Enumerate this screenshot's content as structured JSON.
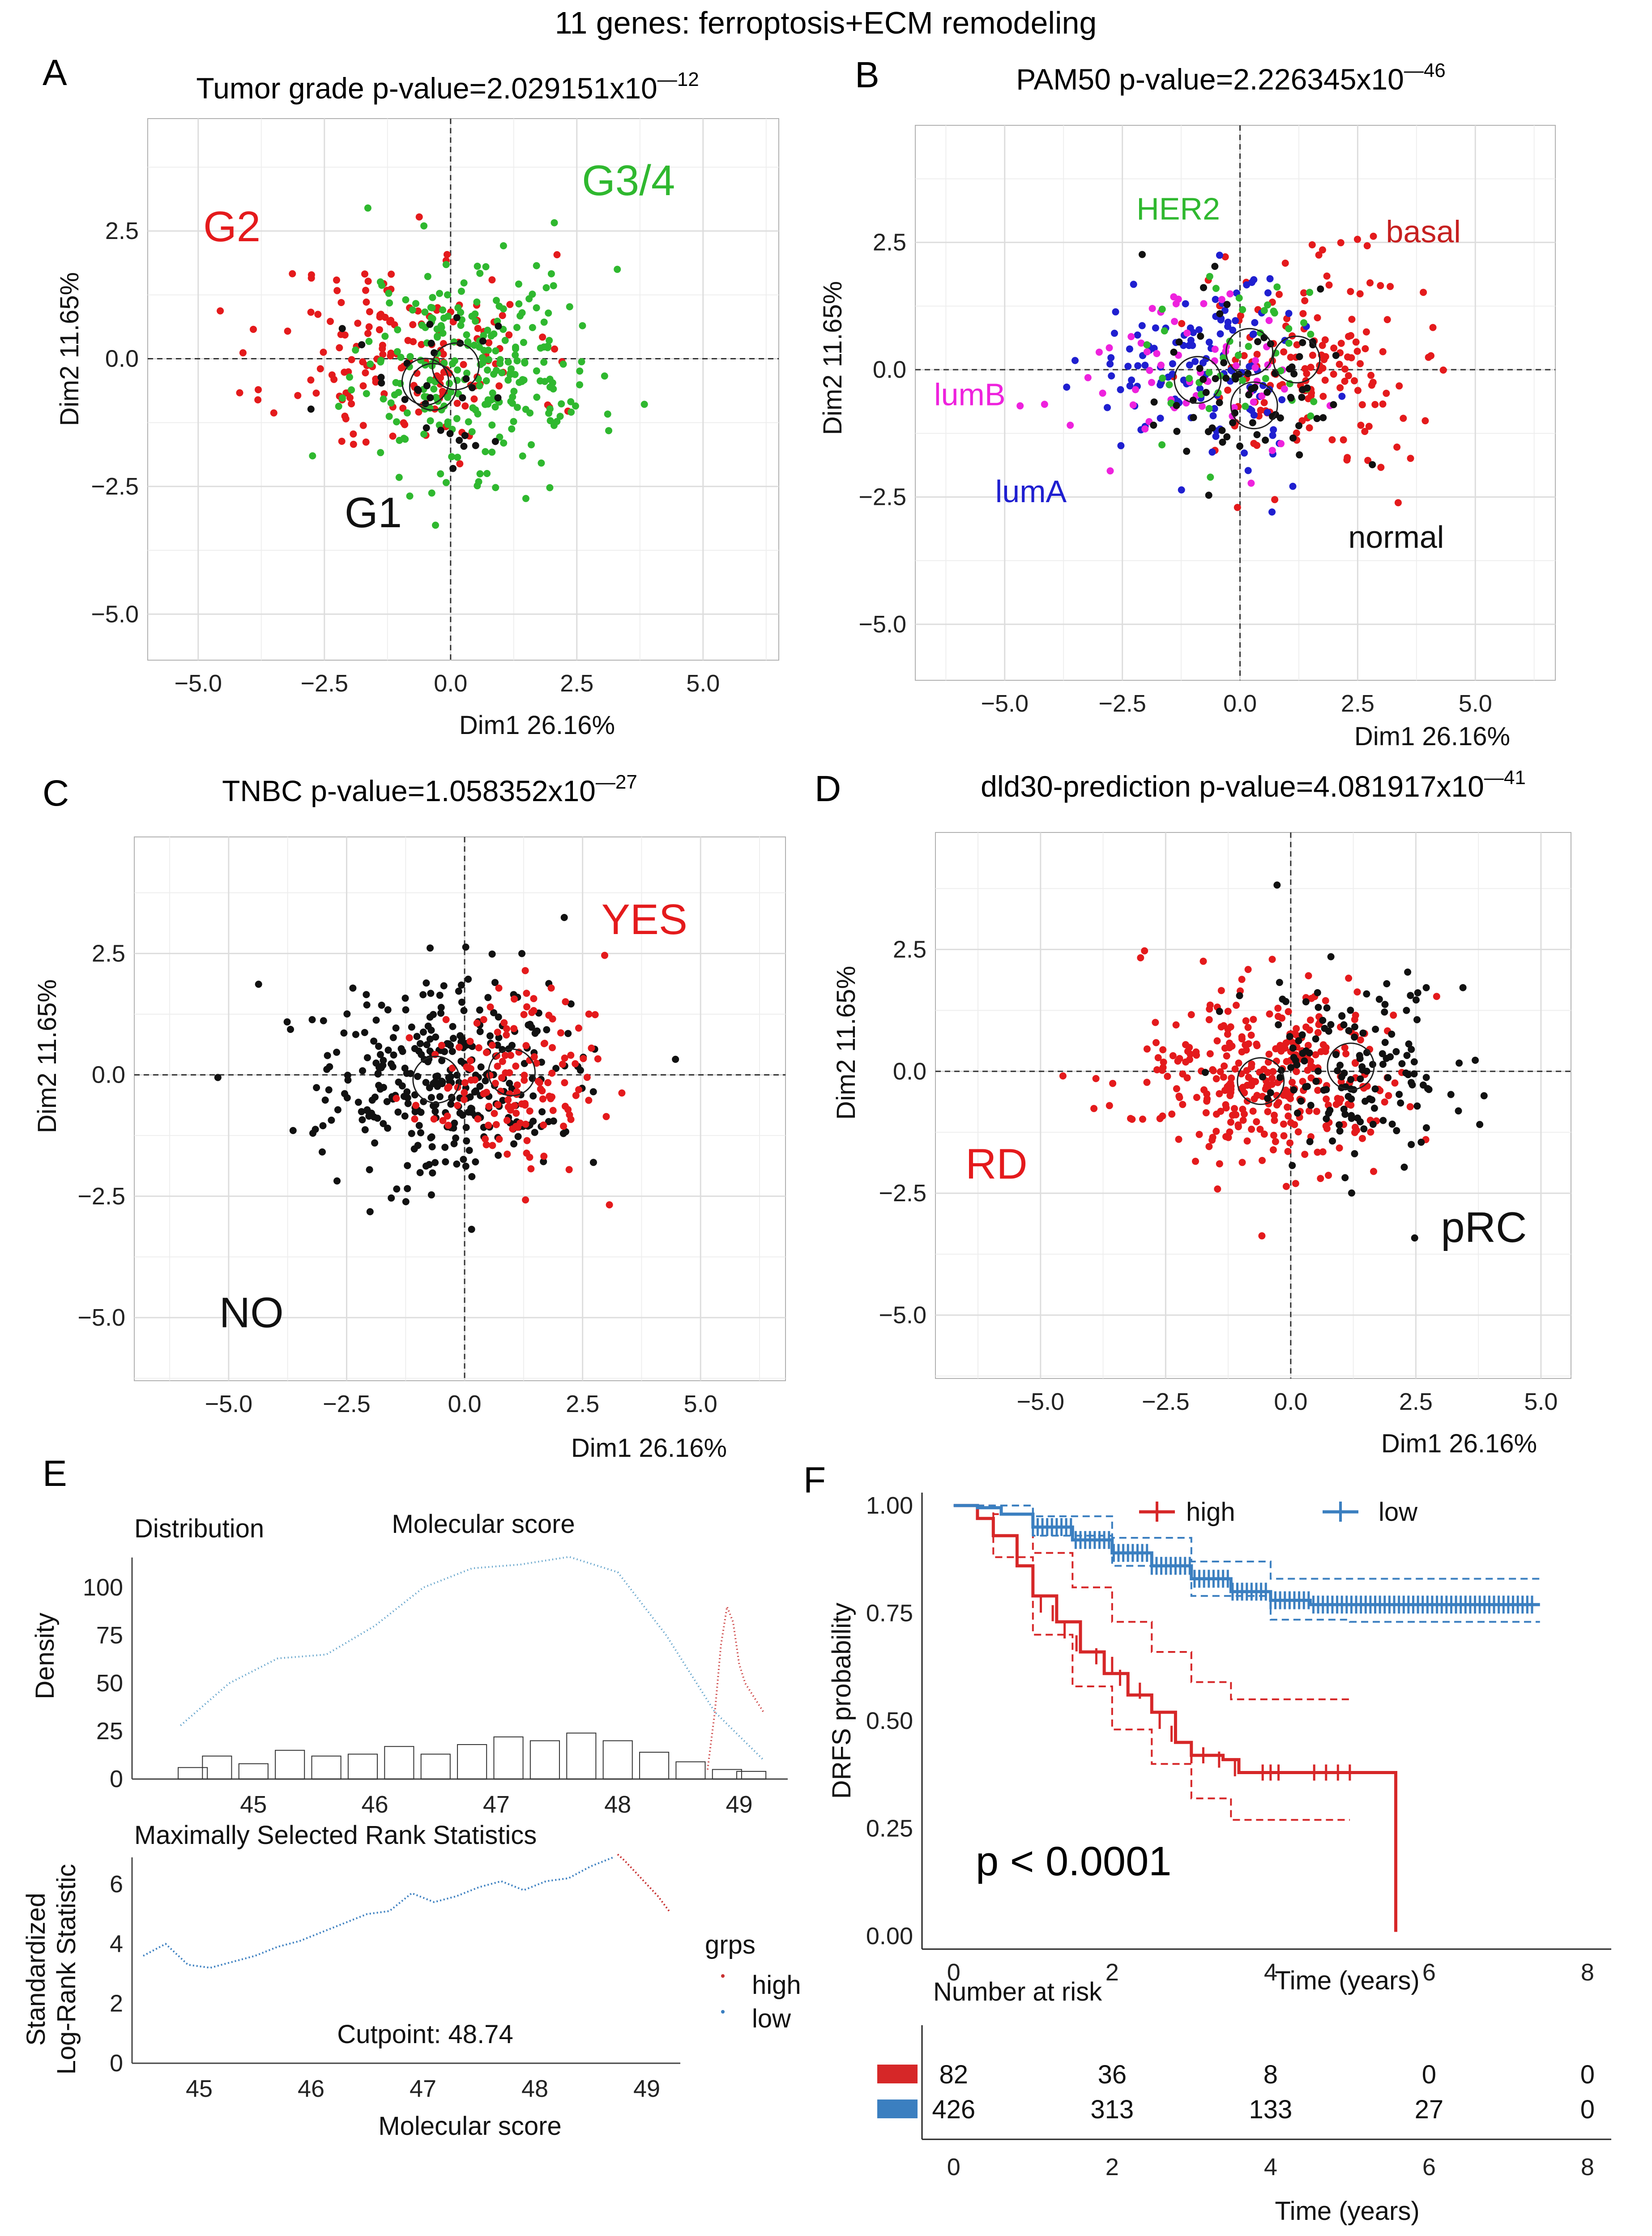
{
  "figure_title": "11 genes: ferroptosis+ECM remodeling",
  "colors": {
    "red": "#e41a1c",
    "green": "#2fb82f",
    "black": "#111111",
    "blue": "#1f1fd0",
    "magenta": "#ee22dd",
    "steel": "#3b7fc0",
    "grey": "#888888"
  },
  "chart_data": [
    {
      "panel": "A",
      "type": "scatter",
      "title": "Tumor grade p-value=2.029151x10",
      "title_exp": "—12",
      "xlabel": "Dim1 26.16%",
      "ylabel": "Dim2  11.65%",
      "xlim": [
        -6.0,
        6.5
      ],
      "ylim": [
        -5.9,
        4.7
      ],
      "xticks": [
        -5.0,
        -2.5,
        0.0,
        2.5,
        5.0
      ],
      "xtick_labels": [
        "−5.0",
        "−2.5",
        "0.0",
        "2.5",
        "5.0"
      ],
      "yticks": [
        -5.0,
        -2.5,
        0.0,
        2.5
      ],
      "ytick_labels": [
        "−5.0",
        "−2.5",
        "0.0",
        "2.5"
      ],
      "groups": [
        {
          "name": "G2",
          "color": "#e41a1c",
          "n": 170,
          "cx": -0.9,
          "cy": 0.05,
          "sx": 1.3,
          "sy": 1.0
        },
        {
          "name": "G3/4",
          "color": "#2fb82f",
          "n": 260,
          "cx": 0.5,
          "cy": -0.1,
          "sx": 1.2,
          "sy": 1.05
        },
        {
          "name": "G1",
          "color": "#111111",
          "n": 32,
          "cx": -0.4,
          "cy": -0.4,
          "sx": 0.9,
          "sy": 0.8
        }
      ],
      "group_labels": [
        {
          "text": "G2",
          "color": "#e41a1c",
          "x": -4.9,
          "y": 2.3
        },
        {
          "text": "G3/4",
          "color": "#2fb82f",
          "x": 2.6,
          "y": 3.2
        },
        {
          "text": "G1",
          "color": "#111111",
          "x": -2.1,
          "y": -3.3
        }
      ],
      "centroids": [
        [
          -0.5,
          -0.45
        ],
        [
          -0.35,
          -0.55
        ],
        [
          0.1,
          -0.15
        ]
      ]
    },
    {
      "panel": "B",
      "type": "scatter",
      "title": "PAM50 p-value=2.226345x10",
      "title_exp": "—46",
      "xlabel": "Dim1 26.16%",
      "ylabel": "Dim2  11.65%",
      "xlim": [
        -6.9,
        6.7
      ],
      "ylim": [
        -6.1,
        4.8
      ],
      "xticks": [
        -5.0,
        -2.5,
        0.0,
        2.5,
        5.0
      ],
      "xtick_labels": [
        "−5.0",
        "−2.5",
        "0.0",
        "2.5",
        "5.0"
      ],
      "yticks": [
        -5.0,
        -2.5,
        0.0,
        2.5
      ],
      "ytick_labels": [
        "−5.0",
        "−2.5",
        "0.0",
        "2.5"
      ],
      "groups": [
        {
          "name": "basal",
          "color": "#e41a1c",
          "n": 150,
          "cx": 1.6,
          "cy": 0.1,
          "sx": 1.1,
          "sy": 1.0
        },
        {
          "name": "lumA",
          "color": "#1f1fd0",
          "n": 130,
          "cx": -0.9,
          "cy": -0.1,
          "sx": 1.2,
          "sy": 0.95
        },
        {
          "name": "lumB",
          "color": "#ee22dd",
          "n": 60,
          "cx": -1.1,
          "cy": 0.0,
          "sx": 1.3,
          "sy": 0.9
        },
        {
          "name": "HER2",
          "color": "#2fb82f",
          "n": 45,
          "cx": 0.3,
          "cy": 0.1,
          "sx": 0.9,
          "sy": 0.9
        },
        {
          "name": "normal",
          "color": "#111111",
          "n": 70,
          "cx": 0.3,
          "cy": -0.3,
          "sx": 1.0,
          "sy": 0.9
        }
      ],
      "group_labels": [
        {
          "text": "HER2",
          "color": "#2fb82f",
          "x": -2.2,
          "y": 2.95,
          "size": 70
        },
        {
          "text": "basal",
          "color": "#c62020",
          "x": 3.1,
          "y": 2.5,
          "size": 70
        },
        {
          "text": "lumB",
          "color": "#ee22dd",
          "x": -6.5,
          "y": -0.7,
          "size": 70
        },
        {
          "text": "lumA",
          "color": "#1f1fd0",
          "x": -5.2,
          "y": -2.6,
          "size": 70
        },
        {
          "text": "normal",
          "color": "#111111",
          "x": 2.3,
          "y": -3.5,
          "size": 70
        }
      ],
      "centroids": [
        [
          1.2,
          0.2
        ],
        [
          -0.9,
          -0.2
        ],
        [
          0.3,
          -0.7
        ],
        [
          0.2,
          0.35
        ]
      ]
    },
    {
      "panel": "C",
      "type": "scatter",
      "title": "TNBC p-value=1.058352x10",
      "title_exp": "—27",
      "xlabel": "Dim1 26.16%",
      "ylabel": "Dim2  11.65%",
      "xlim": [
        -7.0,
        6.8
      ],
      "ylim": [
        -6.3,
        4.9
      ],
      "xticks": [
        -5.0,
        -2.5,
        0.0,
        2.5,
        5.0
      ],
      "xtick_labels": [
        "−5.0",
        "−2.5",
        "0.0",
        "2.5",
        "5.0"
      ],
      "yticks": [
        -5.0,
        -2.5,
        0.0,
        2.5
      ],
      "ytick_labels": [
        "−5.0",
        "−2.5",
        "0.0",
        "2.5"
      ],
      "groups": [
        {
          "name": "NO",
          "color": "#111111",
          "n": 330,
          "cx": -0.4,
          "cy": -0.1,
          "sx": 1.35,
          "sy": 1.0
        },
        {
          "name": "YES",
          "color": "#e41a1c",
          "n": 150,
          "cx": 1.1,
          "cy": -0.1,
          "sx": 1.0,
          "sy": 1.0
        }
      ],
      "group_labels": [
        {
          "text": "YES",
          "color": "#e41a1c",
          "x": 2.9,
          "y": 2.9
        },
        {
          "text": "NO",
          "color": "#111111",
          "x": -5.2,
          "y": -5.2
        }
      ],
      "centroids": [
        [
          -0.6,
          -0.1
        ],
        [
          1.0,
          0.05
        ]
      ]
    },
    {
      "panel": "D",
      "type": "scatter",
      "title": "dld30-prediction p-value=4.081917x10",
      "title_exp": "—41",
      "xlabel": "Dim1 26.16%",
      "ylabel": "Dim2  11.65%",
      "xlim": [
        -7.1,
        5.6
      ],
      "ylim": [
        -6.3,
        4.9
      ],
      "xticks": [
        -5.0,
        -2.5,
        0.0,
        2.5,
        5.0
      ],
      "xtick_labels": [
        "−5.0",
        "−2.5",
        "0.0",
        "2.5",
        "5.0"
      ],
      "yticks": [
        -5.0,
        -2.5,
        0.0,
        2.5
      ],
      "ytick_labels": [
        "−5.0",
        "−2.5",
        "0.0",
        "2.5"
      ],
      "groups": [
        {
          "name": "RD",
          "color": "#e41a1c",
          "n": 330,
          "cx": -0.5,
          "cy": -0.1,
          "sx": 1.35,
          "sy": 1.0
        },
        {
          "name": "pRC",
          "color": "#111111",
          "n": 150,
          "cx": 1.2,
          "cy": 0.0,
          "sx": 1.0,
          "sy": 1.0
        }
      ],
      "group_labels": [
        {
          "text": "RD",
          "color": "#e41a1c",
          "x": -6.5,
          "y": -2.2
        },
        {
          "text": "pRC",
          "color": "#111111",
          "x": 3.0,
          "y": -3.5
        }
      ],
      "centroids": [
        [
          -0.6,
          -0.2
        ],
        [
          1.2,
          0.1
        ]
      ]
    },
    {
      "panel": "E",
      "type": "density",
      "title": "Molecular score",
      "subtitle": "Distribution",
      "ylabel": "Density",
      "xlim": [
        44.0,
        49.4
      ],
      "ylim": [
        0,
        125
      ],
      "xticks": [
        45,
        46,
        47,
        48,
        49
      ],
      "xtick_labels": [
        "45",
        "46",
        "47",
        "48",
        "49"
      ],
      "yticks": [
        0,
        25,
        50,
        75,
        100
      ],
      "ytick_labels": [
        "0",
        "25",
        "50",
        "75",
        "100"
      ],
      "density_low_x": [
        44.4,
        44.8,
        45.2,
        45.6,
        46.0,
        46.4,
        46.8,
        47.2,
        47.6,
        48.0,
        48.4,
        48.8,
        49.2
      ],
      "density_low_y": [
        28,
        50,
        63,
        65,
        80,
        100,
        110,
        112,
        116,
        108,
        75,
        35,
        10
      ],
      "density_high_x": [
        48.74,
        48.8,
        48.85,
        48.9,
        48.95,
        49.0,
        49.05,
        49.1,
        49.2
      ],
      "density_high_y": [
        5,
        35,
        70,
        90,
        82,
        60,
        50,
        45,
        35
      ],
      "histogram_x": [
        44.5,
        44.7,
        45.0,
        45.3,
        45.6,
        45.9,
        46.2,
        46.5,
        46.8,
        47.1,
        47.4,
        47.7,
        48.0,
        48.3,
        48.6,
        48.9,
        49.1
      ],
      "histogram_y": [
        6,
        12,
        8,
        15,
        12,
        13,
        17,
        13,
        18,
        22,
        20,
        24,
        20,
        14,
        9,
        5,
        4
      ]
    },
    {
      "panel": "E2",
      "type": "line",
      "title": "Maximally Selected Rank Statistics",
      "xlabel": "Molecular score",
      "ylabel": "Standardized Log-Rank Statistic",
      "ylabel_lines": [
        "Standardized",
        "Log-Rank Statistic"
      ],
      "xlim": [
        44.4,
        49.3
      ],
      "ylim": [
        0,
        7.2
      ],
      "xticks": [
        45,
        46,
        47,
        48,
        49
      ],
      "xtick_labels": [
        "45",
        "46",
        "47",
        "48",
        "49"
      ],
      "yticks": [
        0,
        2,
        4,
        6
      ],
      "ytick_labels": [
        "0",
        "2",
        "4",
        "6"
      ],
      "cutpoint_label": "Cutpoint: 48.74",
      "legend_title": "grps",
      "legend": [
        "high",
        "low"
      ],
      "low_x": [
        44.5,
        44.7,
        44.9,
        45.1,
        45.3,
        45.5,
        45.7,
        45.9,
        46.1,
        46.3,
        46.5,
        46.7,
        46.9,
        47.1,
        47.3,
        47.5,
        47.7,
        47.9,
        48.1,
        48.3,
        48.5,
        48.7
      ],
      "low_y": [
        3.6,
        4.0,
        3.3,
        3.2,
        3.4,
        3.6,
        3.9,
        4.1,
        4.4,
        4.7,
        5.0,
        5.1,
        5.7,
        5.4,
        5.6,
        5.9,
        6.1,
        5.8,
        6.1,
        6.2,
        6.6,
        6.9
      ],
      "high_x": [
        48.74,
        48.8,
        48.9,
        49.0,
        49.1,
        49.2
      ],
      "high_y": [
        7.0,
        6.8,
        6.4,
        6.0,
        5.6,
        5.1
      ]
    },
    {
      "panel": "F",
      "type": "kaplan-meier",
      "ylabel": "DRFS probability",
      "xlabel": "Time (years)",
      "xlim": [
        -0.4,
        8.3
      ],
      "ylim": [
        -0.03,
        1.03
      ],
      "xticks": [
        0,
        2,
        4,
        6,
        8
      ],
      "xtick_labels": [
        "0",
        "2",
        "4",
        "6",
        "8"
      ],
      "yticks": [
        0.0,
        0.25,
        0.5,
        0.75,
        1.0
      ],
      "ytick_labels": [
        "0.00",
        "0.25",
        "0.50",
        "0.75",
        "1.00"
      ],
      "pvalue": "p < 0.0001",
      "legend": [
        "high",
        "low"
      ],
      "series": [
        {
          "name": "high",
          "color": "#d62728",
          "x": [
            0,
            0.3,
            0.5,
            0.8,
            1.0,
            1.3,
            1.6,
            1.9,
            2.2,
            2.5,
            2.8,
            3.0,
            3.4,
            3.6,
            4.0,
            4.8,
            5.58,
            5.58
          ],
          "y": [
            1.0,
            0.97,
            0.93,
            0.86,
            0.79,
            0.73,
            0.66,
            0.61,
            0.56,
            0.52,
            0.45,
            0.42,
            0.41,
            0.38,
            0.38,
            0.38,
            0.38,
            0.01
          ],
          "upper_x": [
            0,
            0.5,
            1.0,
            1.5,
            2.0,
            2.5,
            3.0,
            3.5,
            4.0,
            4.6,
            5.0
          ],
          "upper_y": [
            1.0,
            0.98,
            0.89,
            0.81,
            0.73,
            0.66,
            0.59,
            0.55,
            0.55,
            0.55,
            0.55
          ],
          "lower_x": [
            0,
            0.5,
            1.0,
            1.5,
            2.0,
            2.5,
            3.0,
            3.5,
            4.0,
            4.6,
            5.0
          ],
          "lower_y": [
            1.0,
            0.88,
            0.7,
            0.58,
            0.48,
            0.4,
            0.32,
            0.27,
            0.27,
            0.27,
            0.27
          ],
          "censor_x": [
            1.1,
            1.25,
            1.4,
            1.55,
            1.8,
            2.0,
            2.1,
            2.35,
            2.6,
            2.75,
            3.0,
            3.15,
            3.35,
            3.55,
            3.9,
            4.0,
            4.1,
            4.55,
            4.7,
            4.85,
            5.0
          ],
          "censor_y": [
            0.77,
            0.75,
            0.71,
            0.68,
            0.65,
            0.63,
            0.6,
            0.57,
            0.5,
            0.47,
            0.42,
            0.42,
            0.41,
            0.39,
            0.38,
            0.38,
            0.38,
            0.38,
            0.38,
            0.38,
            0.38
          ]
        },
        {
          "name": "low",
          "color": "#3b7fc0",
          "x": [
            0,
            0.3,
            0.6,
            1.0,
            1.5,
            2.0,
            2.5,
            3.0,
            3.5,
            4.0,
            4.5,
            5.0,
            6.0,
            7.4
          ],
          "y": [
            1.0,
            0.995,
            0.98,
            0.95,
            0.92,
            0.89,
            0.86,
            0.83,
            0.8,
            0.78,
            0.77,
            0.77,
            0.77,
            0.77
          ],
          "upper_x": [
            0,
            1.0,
            2.0,
            3.0,
            4.0,
            5.0,
            6.0,
            7.4
          ],
          "upper_y": [
            1.0,
            0.975,
            0.925,
            0.87,
            0.83,
            0.83,
            0.83,
            0.83
          ],
          "lower_x": [
            0,
            1.0,
            2.0,
            3.0,
            4.0,
            5.0,
            6.0,
            7.4
          ],
          "lower_y": [
            1.0,
            0.93,
            0.86,
            0.79,
            0.735,
            0.73,
            0.73,
            0.73
          ]
        }
      ],
      "risk_table": {
        "title": "Number at risk",
        "times": [
          "0",
          "2",
          "4",
          "6",
          "8"
        ],
        "rows": [
          {
            "name": "high",
            "color": "#d62728",
            "values": [
              "82",
              "36",
              "8",
              "0",
              "0"
            ]
          },
          {
            "name": "low",
            "color": "#3b7fc0",
            "values": [
              "426",
              "313",
              "133",
              "27",
              "0"
            ]
          }
        ],
        "xlabel": "Time (years)"
      }
    }
  ],
  "panel_letters": [
    "A",
    "B",
    "C",
    "D",
    "E",
    "F"
  ]
}
